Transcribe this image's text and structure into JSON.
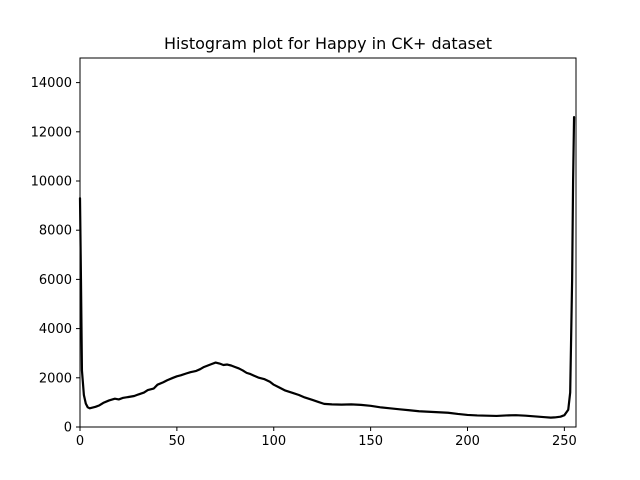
{
  "chart_data": {
    "type": "line",
    "title": "Histogram plot for Happy in CK+ dataset",
    "xlabel": "",
    "ylabel": "",
    "xlim": [
      0,
      256
    ],
    "ylim": [
      0,
      15000
    ],
    "xticks": [
      0,
      50,
      100,
      150,
      200,
      250
    ],
    "yticks": [
      0,
      2000,
      4000,
      6000,
      8000,
      10000,
      12000,
      14000
    ],
    "grid": false,
    "series": [
      {
        "color": "#000000",
        "points": [
          [
            0,
            9300
          ],
          [
            0.5,
            6000
          ],
          [
            1,
            2300
          ],
          [
            2,
            1300
          ],
          [
            3,
            950
          ],
          [
            4,
            800
          ],
          [
            5,
            760
          ],
          [
            6,
            780
          ],
          [
            8,
            820
          ],
          [
            10,
            880
          ],
          [
            12,
            980
          ],
          [
            15,
            1080
          ],
          [
            18,
            1150
          ],
          [
            20,
            1120
          ],
          [
            22,
            1180
          ],
          [
            25,
            1220
          ],
          [
            28,
            1260
          ],
          [
            30,
            1320
          ],
          [
            33,
            1400
          ],
          [
            35,
            1500
          ],
          [
            38,
            1560
          ],
          [
            40,
            1720
          ],
          [
            43,
            1820
          ],
          [
            45,
            1900
          ],
          [
            48,
            2000
          ],
          [
            50,
            2060
          ],
          [
            52,
            2100
          ],
          [
            55,
            2180
          ],
          [
            57,
            2230
          ],
          [
            60,
            2280
          ],
          [
            62,
            2350
          ],
          [
            64,
            2440
          ],
          [
            66,
            2500
          ],
          [
            68,
            2560
          ],
          [
            70,
            2620
          ],
          [
            72,
            2580
          ],
          [
            74,
            2520
          ],
          [
            76,
            2540
          ],
          [
            78,
            2500
          ],
          [
            80,
            2440
          ],
          [
            82,
            2380
          ],
          [
            84,
            2300
          ],
          [
            86,
            2200
          ],
          [
            88,
            2150
          ],
          [
            90,
            2080
          ],
          [
            92,
            2010
          ],
          [
            95,
            1950
          ],
          [
            98,
            1840
          ],
          [
            100,
            1720
          ],
          [
            103,
            1600
          ],
          [
            106,
            1480
          ],
          [
            110,
            1380
          ],
          [
            113,
            1300
          ],
          [
            116,
            1200
          ],
          [
            120,
            1100
          ],
          [
            123,
            1020
          ],
          [
            126,
            940
          ],
          [
            130,
            920
          ],
          [
            135,
            910
          ],
          [
            140,
            920
          ],
          [
            145,
            900
          ],
          [
            150,
            860
          ],
          [
            155,
            800
          ],
          [
            160,
            760
          ],
          [
            165,
            720
          ],
          [
            170,
            680
          ],
          [
            175,
            640
          ],
          [
            180,
            620
          ],
          [
            185,
            600
          ],
          [
            190,
            580
          ],
          [
            195,
            530
          ],
          [
            200,
            490
          ],
          [
            205,
            470
          ],
          [
            210,
            460
          ],
          [
            215,
            450
          ],
          [
            220,
            470
          ],
          [
            225,
            480
          ],
          [
            230,
            460
          ],
          [
            235,
            430
          ],
          [
            240,
            400
          ],
          [
            243,
            380
          ],
          [
            245,
            390
          ],
          [
            248,
            420
          ],
          [
            250,
            480
          ],
          [
            252,
            700
          ],
          [
            253,
            1400
          ],
          [
            254,
            6000
          ],
          [
            254.5,
            10000
          ],
          [
            255,
            12600
          ]
        ]
      }
    ]
  }
}
